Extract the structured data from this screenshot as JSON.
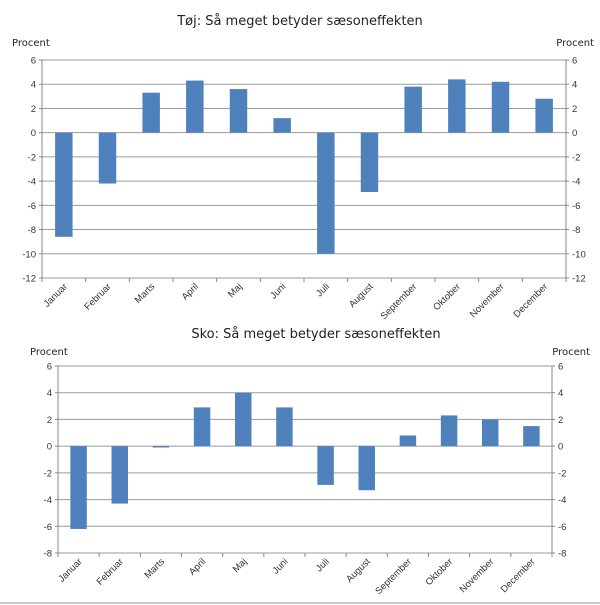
{
  "chart_data": [
    {
      "type": "bar",
      "title": "Tøj: Så meget betyder sæsoneffekten",
      "ylabel_left": "Procent",
      "ylabel_right": "Procent",
      "categories": [
        "Januar",
        "Februar",
        "Marts",
        "April",
        "Maj",
        "Juni",
        "Juli",
        "August",
        "September",
        "Oktober",
        "November",
        "December"
      ],
      "values": [
        -8.6,
        -4.2,
        3.3,
        4.3,
        3.6,
        1.2,
        -10.0,
        -4.9,
        3.8,
        4.4,
        4.2,
        2.8
      ],
      "ylim": [
        -12,
        6
      ],
      "yticks": [
        6,
        4,
        2,
        0,
        -2,
        -4,
        -6,
        -8,
        -10,
        -12
      ],
      "grid": true,
      "bar_color": "#4f81bd"
    },
    {
      "type": "bar",
      "title": "Sko: Så meget betyder sæsoneffekten",
      "ylabel_left": "Procent",
      "ylabel_right": "Procent",
      "categories": [
        "Januar",
        "Februar",
        "Marts",
        "April",
        "Maj",
        "Juni",
        "Juli",
        "August",
        "September",
        "Oktober",
        "November",
        "December"
      ],
      "values": [
        -6.2,
        -4.3,
        -0.1,
        2.9,
        4.0,
        2.9,
        -2.9,
        -3.3,
        0.8,
        2.3,
        2.0,
        1.5
      ],
      "ylim": [
        -8,
        6
      ],
      "yticks": [
        6,
        4,
        2,
        0,
        -2,
        -4,
        -6,
        -8
      ],
      "grid": true,
      "bar_color": "#4f81bd"
    }
  ]
}
